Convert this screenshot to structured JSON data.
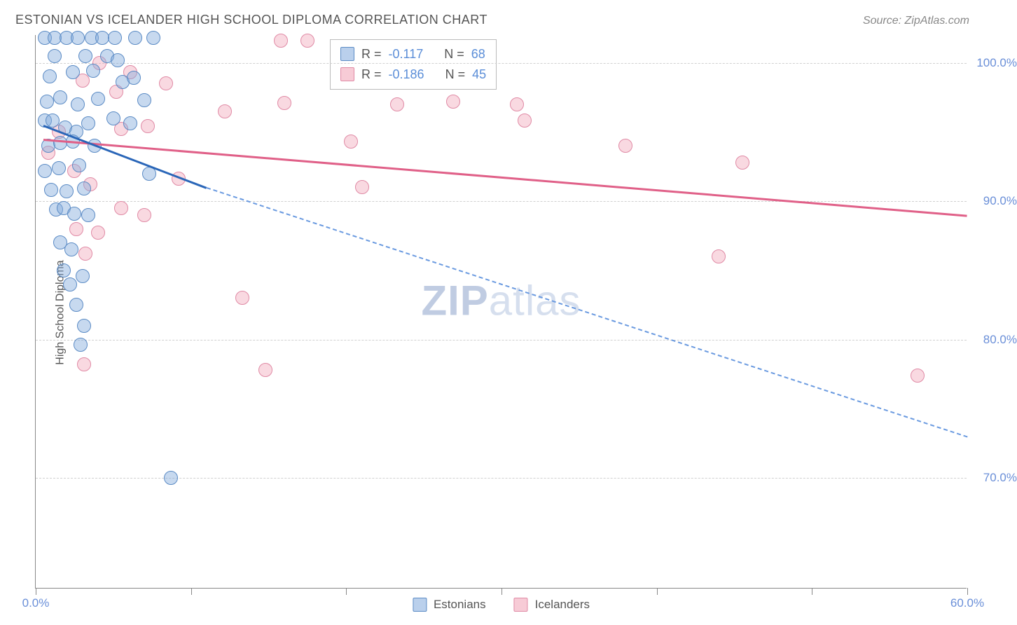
{
  "header": {
    "title": "ESTONIAN VS ICELANDER HIGH SCHOOL DIPLOMA CORRELATION CHART",
    "source_prefix": "Source: ",
    "source": "ZipAtlas.com"
  },
  "axes": {
    "ylabel": "High School Diploma",
    "xmin": 0.0,
    "xmax": 60.0,
    "ymin": 62.0,
    "ymax": 102.0,
    "yticks": [
      70.0,
      80.0,
      90.0,
      100.0
    ],
    "ytick_labels": [
      "70.0%",
      "80.0%",
      "90.0%",
      "100.0%"
    ],
    "xtick_positions": [
      0.0,
      10.0,
      20.0,
      30.0,
      40.0,
      50.0,
      60.0
    ],
    "xtick_labels_show": {
      "0.0": "0.0%",
      "60.0": "60.0%"
    },
    "grid_color": "#d0d0d0",
    "axis_color": "#888888"
  },
  "watermark": {
    "bold": "ZIP",
    "rest": "atlas"
  },
  "series": {
    "blue": {
      "label": "Estonians",
      "color_fill": "rgba(130,170,220,0.45)",
      "color_stroke": "#5b8bc5",
      "trend_color": "#2a66b8",
      "trend_dash_color": "#6a9ae0",
      "trend_start": {
        "x": 0.5,
        "y": 95.5
      },
      "trend_solid_end": {
        "x": 11.0,
        "y": 91.0
      },
      "trend_dash_end": {
        "x": 60.0,
        "y": 73.0
      },
      "R": "-0.117",
      "N": "68",
      "points": [
        [
          0.6,
          101.8
        ],
        [
          1.2,
          101.8
        ],
        [
          2.0,
          101.8
        ],
        [
          2.7,
          101.8
        ],
        [
          3.6,
          101.8
        ],
        [
          4.3,
          101.8
        ],
        [
          5.1,
          101.8
        ],
        [
          6.4,
          101.8
        ],
        [
          7.6,
          101.8
        ],
        [
          1.2,
          100.5
        ],
        [
          3.2,
          100.5
        ],
        [
          4.6,
          100.5
        ],
        [
          5.3,
          100.2
        ],
        [
          0.9,
          99.0
        ],
        [
          2.4,
          99.3
        ],
        [
          3.7,
          99.4
        ],
        [
          5.6,
          98.6
        ],
        [
          6.3,
          98.9
        ],
        [
          0.7,
          97.2
        ],
        [
          1.6,
          97.5
        ],
        [
          2.7,
          97.0
        ],
        [
          4.0,
          97.4
        ],
        [
          7.0,
          97.3
        ],
        [
          0.6,
          95.8
        ],
        [
          1.1,
          95.8
        ],
        [
          1.9,
          95.3
        ],
        [
          2.6,
          95.0
        ],
        [
          3.4,
          95.6
        ],
        [
          5.0,
          96.0
        ],
        [
          6.1,
          95.6
        ],
        [
          0.8,
          94.0
        ],
        [
          1.6,
          94.2
        ],
        [
          2.4,
          94.3
        ],
        [
          3.8,
          94.0
        ],
        [
          0.6,
          92.2
        ],
        [
          1.5,
          92.4
        ],
        [
          2.8,
          92.6
        ],
        [
          7.3,
          92.0
        ],
        [
          1.0,
          90.8
        ],
        [
          2.0,
          90.7
        ],
        [
          3.1,
          90.9
        ],
        [
          1.3,
          89.4
        ],
        [
          1.8,
          89.5
        ],
        [
          2.5,
          89.1
        ],
        [
          3.4,
          89.0
        ],
        [
          1.6,
          87.0
        ],
        [
          2.3,
          86.5
        ],
        [
          1.8,
          85.0
        ],
        [
          2.2,
          84.0
        ],
        [
          3.0,
          84.6
        ],
        [
          2.6,
          82.5
        ],
        [
          3.1,
          81.0
        ],
        [
          2.9,
          79.6
        ],
        [
          8.7,
          70.0
        ]
      ]
    },
    "pink": {
      "label": "Icelanders",
      "color_fill": "rgba(240,160,180,0.40)",
      "color_stroke": "#e08aa5",
      "trend_color": "#e06088",
      "trend_start": {
        "x": 0.5,
        "y": 94.5
      },
      "trend_end": {
        "x": 60.0,
        "y": 89.0
      },
      "R": "-0.186",
      "N": "45",
      "points": [
        [
          4.1,
          100.0
        ],
        [
          6.1,
          99.3
        ],
        [
          15.8,
          101.6
        ],
        [
          17.5,
          101.6
        ],
        [
          3.0,
          98.7
        ],
        [
          5.2,
          97.9
        ],
        [
          8.4,
          98.5
        ],
        [
          12.2,
          96.5
        ],
        [
          16.0,
          97.1
        ],
        [
          23.3,
          97.0
        ],
        [
          26.9,
          97.2
        ],
        [
          31.0,
          97.0
        ],
        [
          1.5,
          95.0
        ],
        [
          5.5,
          95.2
        ],
        [
          7.2,
          95.4
        ],
        [
          20.3,
          94.3
        ],
        [
          31.5,
          95.8
        ],
        [
          0.8,
          93.5
        ],
        [
          2.5,
          92.2
        ],
        [
          3.5,
          91.2
        ],
        [
          9.2,
          91.6
        ],
        [
          38.0,
          94.0
        ],
        [
          45.5,
          92.8
        ],
        [
          5.5,
          89.5
        ],
        [
          7.0,
          89.0
        ],
        [
          2.6,
          88.0
        ],
        [
          4.0,
          87.7
        ],
        [
          21.0,
          91.0
        ],
        [
          3.2,
          86.2
        ],
        [
          44.0,
          86.0
        ],
        [
          13.3,
          83.0
        ],
        [
          3.1,
          78.2
        ],
        [
          14.8,
          77.8
        ],
        [
          56.8,
          77.4
        ]
      ]
    }
  },
  "stats_box": {
    "r_label": "R  =",
    "n_label": "N  ="
  },
  "bottom_legend": {
    "blue": "Estonians",
    "pink": "Icelanders"
  }
}
